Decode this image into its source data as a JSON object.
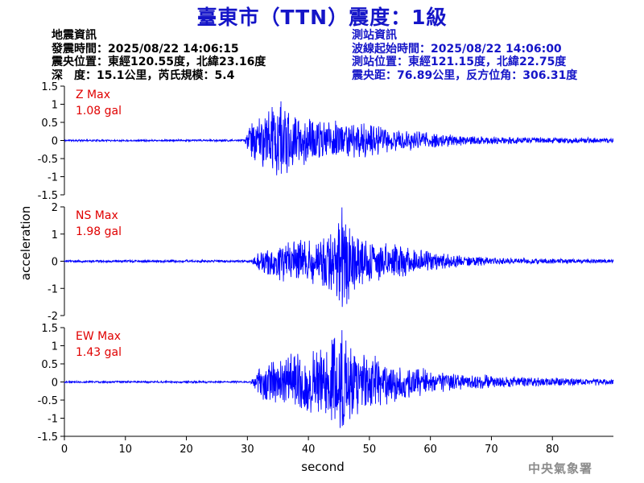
{
  "header": {
    "title": "臺東市（TTN）震度：1級"
  },
  "earthquake_info": {
    "heading": "地震資訊",
    "origin_time": "發震時間：2025/08/22 14:06:15",
    "epicenter": "震央位置：東經120.55度，北緯23.16度",
    "depth_magnitude": "深　度：15.1公里，芮氏規模：5.4"
  },
  "station_info": {
    "heading": "測站資訊",
    "waveform_start": "波線起始時間：2025/08/22 14:06:00",
    "station_location": "測站位置：東經121.15度，北緯22.75度",
    "distance_azimuth": "震央距：76.89公里，反方位角：306.31度"
  },
  "agency": "中央氣象署",
  "colors": {
    "title": "#1515c8",
    "trace": "#0000ff",
    "max_label": "#e00000",
    "station_text": "#1515c8",
    "agency": "#8c8c8c"
  },
  "chart_data": {
    "type": "line",
    "xlabel": "second",
    "ylabel": "acceleration",
    "x_range": [
      0,
      90
    ],
    "x_ticks": [
      0,
      10,
      20,
      30,
      40,
      50,
      60,
      70,
      80
    ],
    "grid": false,
    "panels": [
      {
        "component": "Z",
        "max_label": "Z Max",
        "max_value": "1.08 gal",
        "peak": 1.08,
        "ylim": [
          -1.5,
          1.5
        ],
        "y_ticks": [
          -1.5,
          -1,
          -0.5,
          0,
          0.5,
          1,
          1.5
        ],
        "envelope": [
          [
            0,
            0.03
          ],
          [
            29.5,
            0.03
          ],
          [
            30.5,
            0.5
          ],
          [
            33,
            0.95
          ],
          [
            35.5,
            1.08
          ],
          [
            38,
            0.8
          ],
          [
            42,
            0.6
          ],
          [
            46,
            0.55
          ],
          [
            50,
            0.5
          ],
          [
            55,
            0.35
          ],
          [
            60,
            0.25
          ],
          [
            65,
            0.15
          ],
          [
            75,
            0.1
          ],
          [
            90,
            0.08
          ]
        ],
        "seed": 11
      },
      {
        "component": "NS",
        "max_label": "NS Max",
        "max_value": "1.98 gal",
        "peak": 1.98,
        "ylim": [
          -2,
          2
        ],
        "y_ticks": [
          -2,
          -1,
          0,
          1,
          2
        ],
        "envelope": [
          [
            0,
            0.05
          ],
          [
            30.5,
            0.05
          ],
          [
            32,
            0.4
          ],
          [
            35,
            0.75
          ],
          [
            40,
            0.9
          ],
          [
            44,
            1.2
          ],
          [
            45.5,
            1.98
          ],
          [
            48,
            1.05
          ],
          [
            52,
            0.75
          ],
          [
            56,
            0.6
          ],
          [
            60,
            0.4
          ],
          [
            65,
            0.25
          ],
          [
            70,
            0.15
          ],
          [
            80,
            0.1
          ],
          [
            90,
            0.08
          ]
        ],
        "seed": 23
      },
      {
        "component": "EW",
        "max_label": "EW Max",
        "max_value": "1.43 gal",
        "peak": 1.43,
        "ylim": [
          -1.5,
          1.5
        ],
        "y_ticks": [
          -1.5,
          -1,
          -0.5,
          0,
          0.5,
          1,
          1.5
        ],
        "envelope": [
          [
            0,
            0.03
          ],
          [
            30.5,
            0.03
          ],
          [
            32,
            0.55
          ],
          [
            35,
            0.8
          ],
          [
            38,
            0.9
          ],
          [
            42,
            1.05
          ],
          [
            44,
            1.3
          ],
          [
            45.5,
            1.43
          ],
          [
            47.5,
            1.0
          ],
          [
            52,
            0.75
          ],
          [
            56,
            0.5
          ],
          [
            62,
            0.3
          ],
          [
            70,
            0.2
          ],
          [
            80,
            0.12
          ],
          [
            90,
            0.1
          ]
        ],
        "seed": 37
      }
    ]
  }
}
